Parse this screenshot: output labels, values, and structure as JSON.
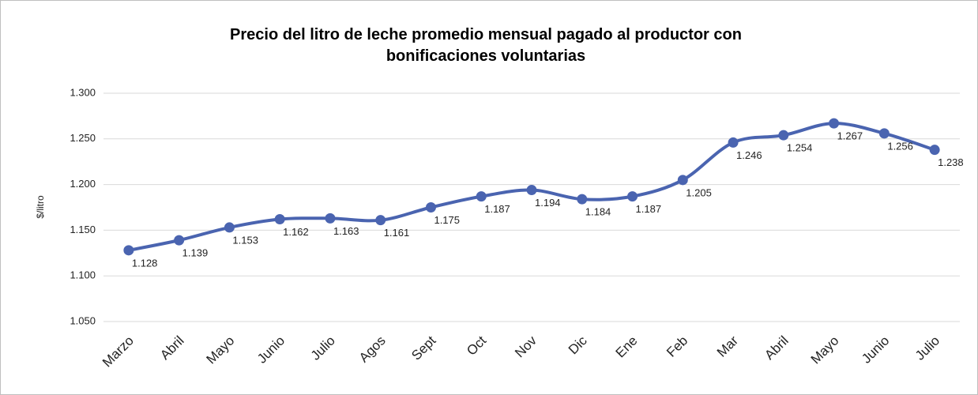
{
  "chart_data": {
    "type": "line",
    "title": "Precio del litro de leche promedio mensual pagado al productor con bonificaciones voluntarias",
    "y_label": "$/litro",
    "categories": [
      "Marzo",
      "Abril",
      "Mayo",
      "Junio",
      "Julio",
      "Agos",
      "Sept",
      "Oct",
      "Nov",
      "Dic",
      "Ene",
      "Feb",
      "Mar",
      "Abril",
      "Mayo",
      "Junio",
      "Julio"
    ],
    "series": [
      {
        "name": "Precio",
        "color": "#4a64b0",
        "values": [
          1.128,
          1.139,
          1.153,
          1.162,
          1.163,
          1.161,
          1.175,
          1.187,
          1.194,
          1.184,
          1.187,
          1.205,
          1.246,
          1.254,
          1.267,
          1.256,
          1.238
        ]
      }
    ],
    "ylim": [
      1.05,
      1.3
    ],
    "yticks": [
      {
        "value": 1.05,
        "label": "1.050"
      },
      {
        "value": 1.1,
        "label": "1.100"
      },
      {
        "value": 1.15,
        "label": "1.150"
      },
      {
        "value": 1.2,
        "label": "1.200"
      },
      {
        "value": 1.25,
        "label": "1.250"
      },
      {
        "value": 1.3,
        "label": "1.300"
      }
    ],
    "grid": true
  }
}
